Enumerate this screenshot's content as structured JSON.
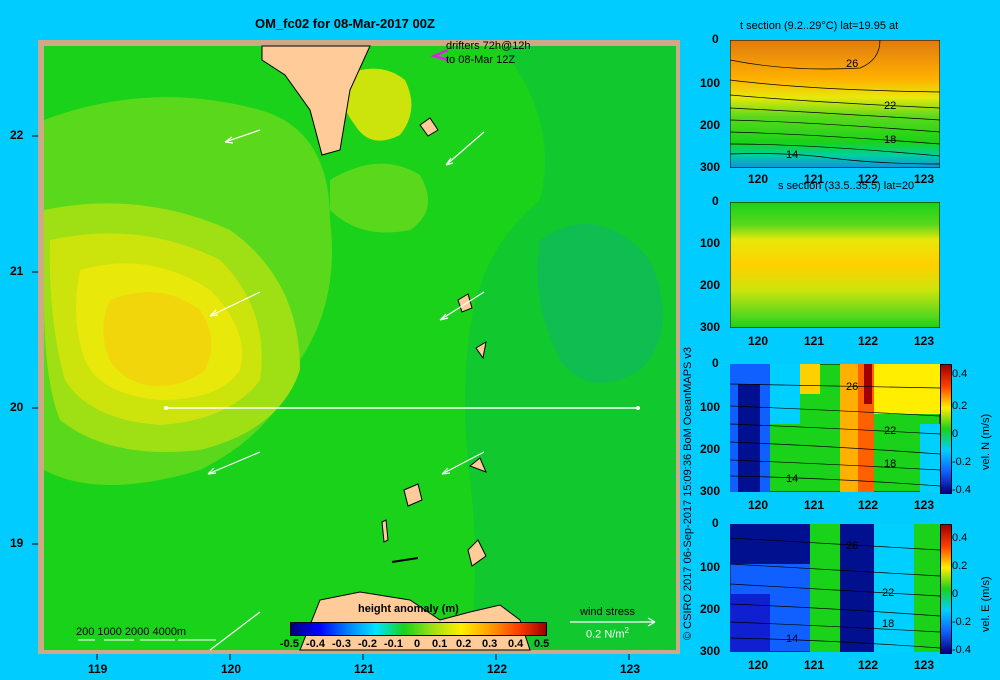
{
  "title": "OM_fc02 for 08-Mar-2017 00Z",
  "drifters_label_1": "drifters 72h@12h",
  "drifters_label_2": "to 08-Mar 12Z",
  "colorbar": {
    "title": "height anomaly  (m)",
    "ticks": [
      "-0.5",
      "-0.4",
      "-0.3",
      "-0.2",
      "-0.1",
      "0",
      "0.1",
      "0.2",
      "0.3",
      "0.4",
      "0.5"
    ]
  },
  "depth_legend": "200  1000  2000  4000m",
  "wind_stress": {
    "label": "wind stress",
    "scale": "0.2 N/m",
    "sup": "2"
  },
  "map": {
    "x_ticks": [
      "119",
      "120",
      "121",
      "122",
      "123"
    ],
    "y_ticks": [
      "22",
      "21",
      "20",
      "19"
    ],
    "section_lat": 20
  },
  "copyright": "© CSIRO 2017   06-Sep-2017 15:09:36 BoM OceanMAPS v3",
  "panels": [
    {
      "title": "t section (9.2..29°C) lat=19.95 at",
      "contours": [
        "26",
        "22",
        "18",
        "14"
      ],
      "y_ticks": [
        "0",
        "100",
        "200",
        "300"
      ],
      "x_ticks": [
        "120",
        "121",
        "122",
        "123"
      ]
    },
    {
      "title": "s section (33.5..35.5) lat=20",
      "contours": [],
      "y_ticks": [
        "0",
        "100",
        "200",
        "300"
      ],
      "x_ticks": [
        "120",
        "121",
        "122",
        "123"
      ]
    },
    {
      "title": "",
      "contours": [
        "26",
        "22",
        "18",
        "14"
      ],
      "y_ticks": [
        "0",
        "100",
        "200",
        "300"
      ],
      "x_ticks": [
        "120",
        "121",
        "122",
        "123"
      ],
      "cbar_label": "vel. N (m/s)",
      "cbar_ticks": [
        "0.4",
        "0.2",
        "0",
        "-0.2",
        "-0.4"
      ]
    },
    {
      "title": "",
      "contours": [
        "26",
        "22",
        "18",
        "14"
      ],
      "y_ticks": [
        "0",
        "100",
        "200",
        "300"
      ],
      "x_ticks": [
        "120",
        "121",
        "122",
        "123"
      ],
      "cbar_label": "vel. E (m/s)",
      "cbar_ticks": [
        "0.4",
        "0.2",
        "0",
        "-0.2",
        "-0.4"
      ]
    }
  ]
}
